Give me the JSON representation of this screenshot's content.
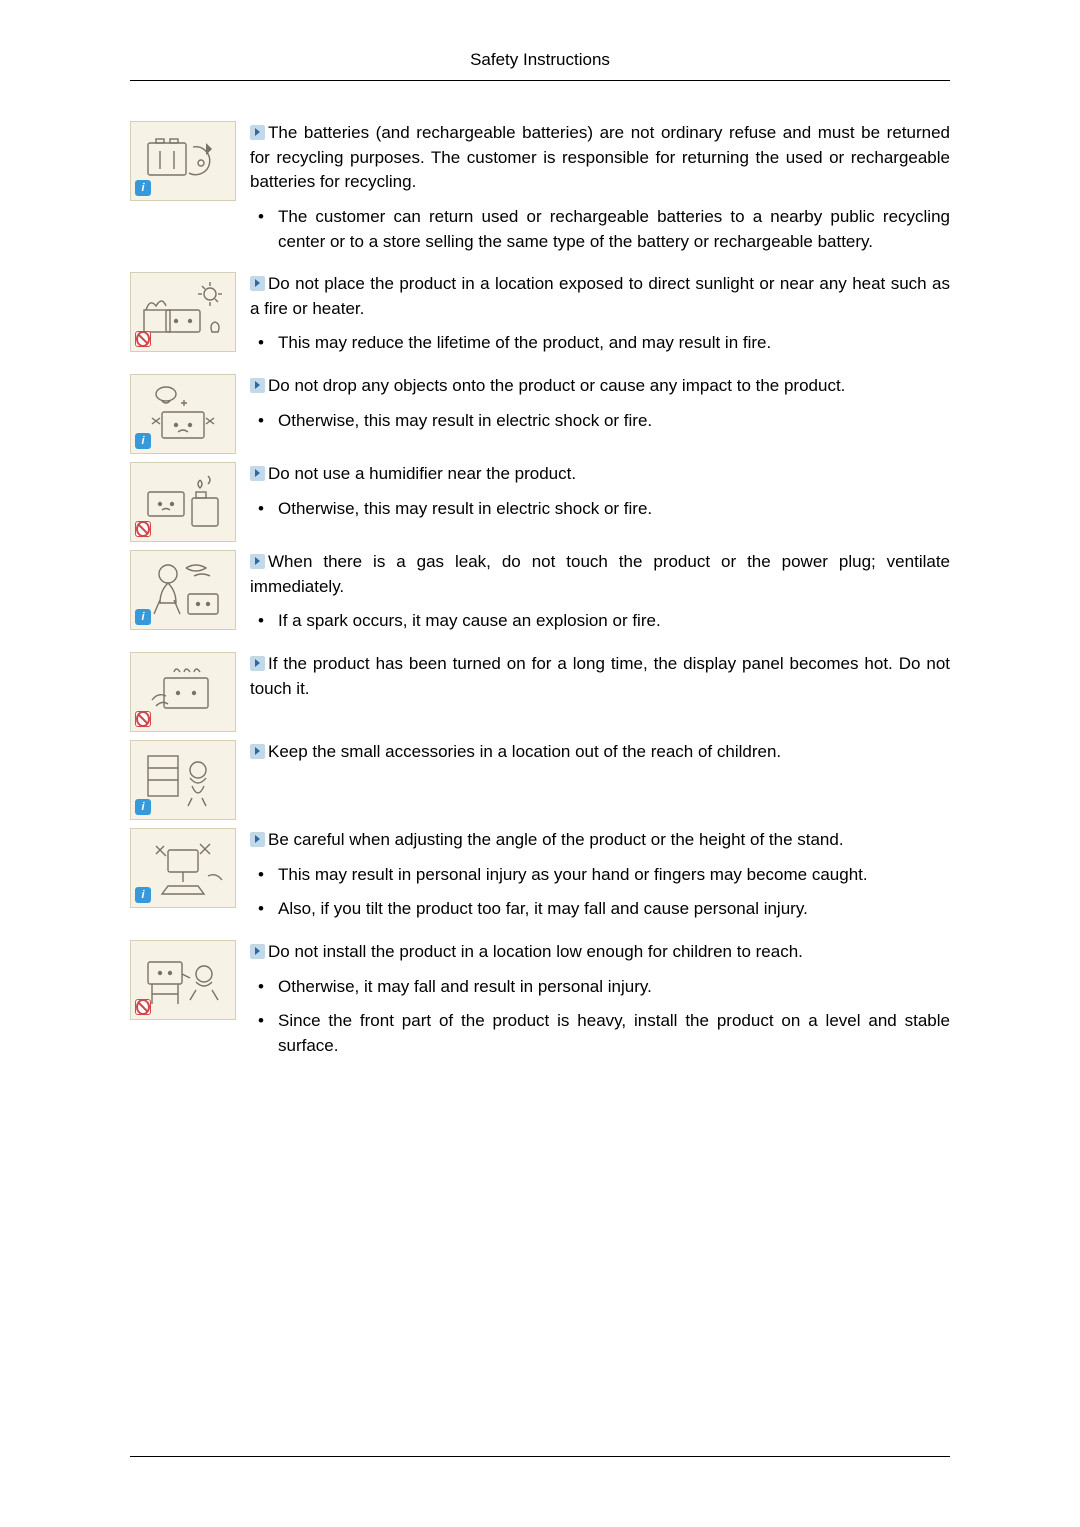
{
  "header": {
    "title": "Safety Instructions"
  },
  "items": [
    {
      "badge": "info",
      "illus": "battery",
      "lead": "The batteries (and rechargeable batteries) are not ordinary refuse and must be returned for recycling purposes. The customer is responsible for returning the used or rechargeable batteries for recycling.",
      "bullets": [
        "The customer can return used or rechargeable batteries to a nearby public recycling center or to a store selling the same type of the battery or rechargeable battery."
      ]
    },
    {
      "badge": "prohibit",
      "illus": "sunlight",
      "lead": "Do not place the product in a location exposed to direct sunlight or near any heat such as a fire or heater.",
      "bullets": [
        "This may reduce the lifetime of the product, and may result in fire."
      ]
    },
    {
      "badge": "info",
      "illus": "drop",
      "lead": "Do not drop any objects onto the product or cause any impact to the product.",
      "bullets": [
        "Otherwise, this may result in electric shock or fire."
      ]
    },
    {
      "badge": "prohibit",
      "illus": "humidifier",
      "lead": "Do not use a humidifier near the product.",
      "bullets": [
        "Otherwise, this may result in electric shock or fire."
      ]
    },
    {
      "badge": "info",
      "illus": "gas",
      "lead": "When there is a gas leak, do not touch the product or the power plug; ventilate immediately.",
      "bullets": [
        "If a spark occurs, it may cause an explosion or fire."
      ]
    },
    {
      "badge": "prohibit",
      "illus": "hot",
      "lead": "If the product has been turned on for a long time, the display panel becomes hot. Do not touch it.",
      "bullets": []
    },
    {
      "badge": "info",
      "illus": "children",
      "lead": "Keep the small accessories in a location out of the reach of children.",
      "bullets": []
    },
    {
      "badge": "info",
      "illus": "angle",
      "lead": "Be careful when adjusting the angle of the product or the height of the stand.",
      "bullets": [
        "This may result in personal injury as your hand or fingers may become caught.",
        "Also, if you tilt the product too far, it may fall and cause personal injury."
      ]
    },
    {
      "badge": "prohibit",
      "illus": "low",
      "lead": "Do not install the product in a location low enough for children to reach.",
      "bullets": [
        "Otherwise, it may fall and result in personal injury.",
        "Since the front part of the product is heavy, install the product on a level and stable surface."
      ]
    }
  ]
}
